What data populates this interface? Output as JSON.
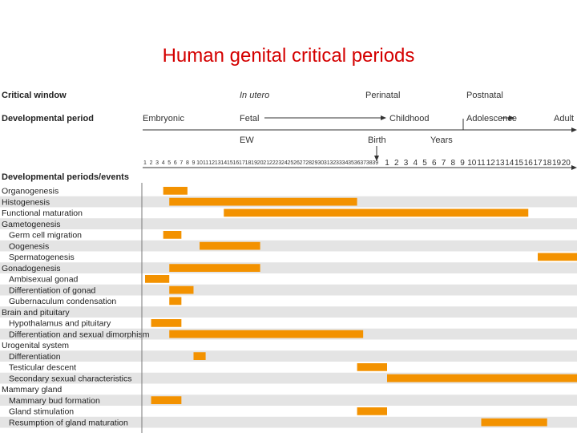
{
  "title": "Human genital critical periods",
  "colors": {
    "title": "#d40000",
    "bar": "#f39200",
    "row_shade": "#e4e4e4",
    "text": "#222222"
  },
  "header": {
    "critical_window_label": "Critical window",
    "developmental_period_label": "Developmental period",
    "in_utero": "In utero",
    "perinatal": "Perinatal",
    "postnatal": "Postnatal",
    "embryonic": "Embryonic",
    "fetal": "Fetal",
    "childhood": "Childhood",
    "adolescence": "Adolescence",
    "adult": "Adult",
    "ew": "EW",
    "birth": "Birth",
    "years": "Years",
    "events_label": "Developmental periods/events"
  },
  "chart_data": {
    "type": "gantt",
    "title": "Human genital critical periods",
    "x_axis": {
      "prenatal_ticks": [
        "1",
        "2",
        "3",
        "4",
        "5",
        "6",
        "7",
        "8",
        "9",
        "10",
        "11",
        "12",
        "13",
        "14",
        "15",
        "16",
        "17",
        "18",
        "19",
        "20",
        "21",
        "22",
        "23",
        "24",
        "25",
        "26",
        "27",
        "28",
        "29",
        "30",
        "31",
        "32",
        "33",
        "34",
        "35",
        "36",
        "37",
        "38",
        "39"
      ],
      "postnatal_ticks": [
        "1",
        "2",
        "3",
        "4",
        "5",
        "6",
        "7",
        "8",
        "9",
        "10",
        "11",
        "12",
        "13",
        "14",
        "15",
        "16",
        "17",
        "18",
        "19",
        "20"
      ],
      "prenatal_unit": "EW",
      "postnatal_unit": "Years",
      "note": "Bar start/end use a combined index: 1-39 = embryonic week; 40+n = postnatal year n"
    },
    "rows": [
      {
        "label": "Organogenesis",
        "indent": 0,
        "bars": [
          [
            4,
            8
          ]
        ]
      },
      {
        "label": "Histogenesis",
        "indent": 0,
        "bars": [
          [
            5,
            36
          ]
        ]
      },
      {
        "label": "Functional maturation",
        "indent": 0,
        "bars": [
          [
            14,
            55
          ]
        ]
      },
      {
        "label": "Gametogenesis",
        "indent": 0,
        "bars": []
      },
      {
        "label": "Germ cell migration",
        "indent": 1,
        "bars": [
          [
            4,
            7
          ]
        ]
      },
      {
        "label": "Oogenesis",
        "indent": 1,
        "bars": [
          [
            10,
            20
          ]
        ]
      },
      {
        "label": "Spermatogenesis",
        "indent": 1,
        "bars": [
          [
            56,
            61
          ]
        ]
      },
      {
        "label": "Gonadogenesis",
        "indent": 0,
        "bars": [
          [
            5,
            20
          ]
        ]
      },
      {
        "label": "Ambisexual gonad",
        "indent": 1,
        "bars": [
          [
            1,
            5
          ]
        ]
      },
      {
        "label": "Differentiation of gonad",
        "indent": 1,
        "bars": [
          [
            5,
            9
          ]
        ]
      },
      {
        "label": "Gubernaculum condensation",
        "indent": 1,
        "bars": [
          [
            5,
            7
          ]
        ]
      },
      {
        "label": "Brain and pituitary",
        "indent": 0,
        "bars": []
      },
      {
        "label": "Hypothalamus and pituitary",
        "indent": 1,
        "bars": [
          [
            2,
            7
          ]
        ]
      },
      {
        "label": "Differentiation and sexual dimorphism",
        "indent": 1,
        "bars": [
          [
            5,
            37
          ]
        ]
      },
      {
        "label": "Urogenital system",
        "indent": 0,
        "bars": []
      },
      {
        "label": "Differentiation",
        "indent": 1,
        "bars": [
          [
            9,
            11
          ]
        ]
      },
      {
        "label": "Testicular descent",
        "indent": 1,
        "bars": [
          [
            36,
            40
          ]
        ]
      },
      {
        "label": "Secondary sexual characteristics",
        "indent": 1,
        "bars": [
          [
            40,
            61
          ]
        ]
      },
      {
        "label": "Mammary gland",
        "indent": 0,
        "bars": []
      },
      {
        "label": "Mammary bud formation",
        "indent": 1,
        "bars": [
          [
            2,
            7
          ]
        ]
      },
      {
        "label": "Gland stimulation",
        "indent": 1,
        "bars": [
          [
            36,
            40
          ]
        ]
      },
      {
        "label": "Resumption of gland maturation",
        "indent": 1,
        "bars": [
          [
            50,
            57
          ]
        ]
      }
    ]
  }
}
